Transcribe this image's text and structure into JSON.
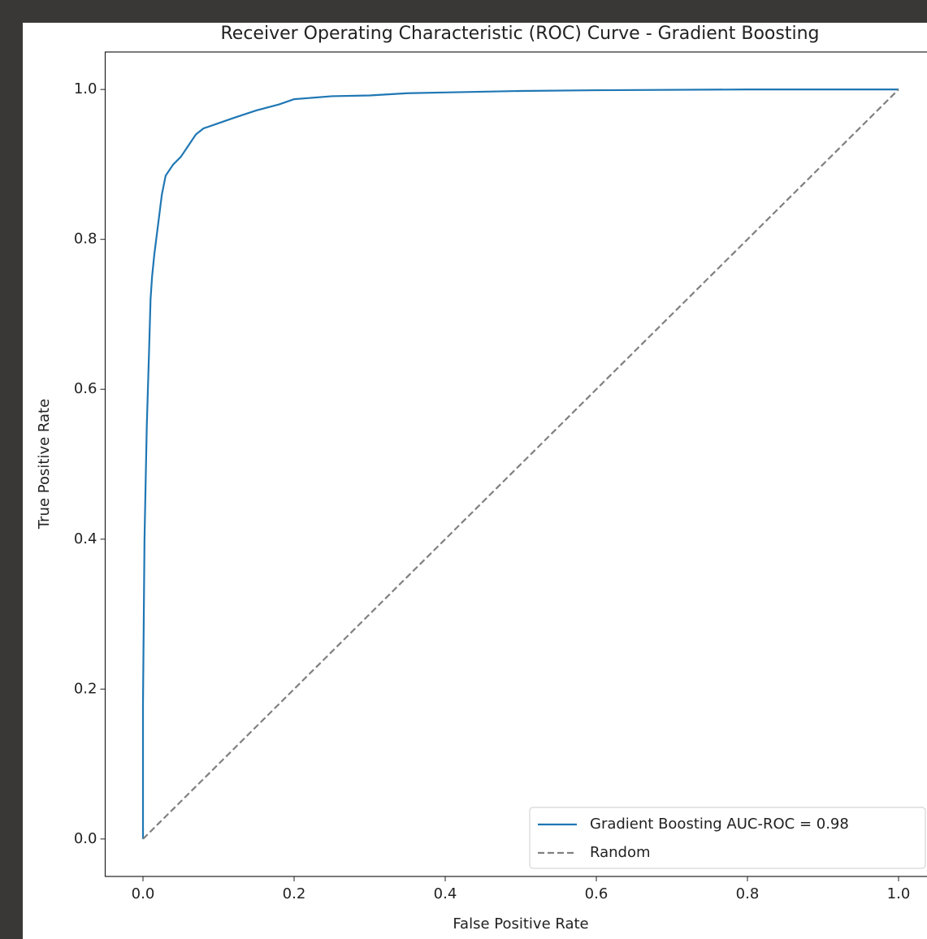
{
  "chart_data": {
    "type": "line",
    "title": "Receiver Operating Characteristic (ROC) Curve - Gradient Boosting",
    "xlabel": "False Positive Rate",
    "ylabel": "True Positive Rate",
    "xlim": [
      -0.05,
      1.05
    ],
    "ylim": [
      -0.05,
      1.05
    ],
    "xticks": [
      {
        "value": 0,
        "label": "0.0"
      },
      0.2,
      0.4,
      0.6,
      0.8,
      {
        "value": 1,
        "label": "1.0"
      }
    ],
    "yticks": [
      {
        "value": 0,
        "label": "0.0"
      },
      0.2,
      0.4,
      0.6,
      0.8,
      {
        "value": 1,
        "label": "1.0"
      }
    ],
    "legend": "lower right",
    "series": [
      {
        "name": "Gradient Boosting AUC-ROC = 0.98",
        "color": "#1f77b4",
        "style": "solid",
        "x": [
          0,
          0,
          0.002,
          0.003,
          0.005,
          0.008,
          0.01,
          0.012,
          0.015,
          0.02,
          0.025,
          0.03,
          0.04,
          0.05,
          0.06,
          0.07,
          0.08,
          0.1,
          0.12,
          0.15,
          0.18,
          0.2,
          0.25,
          0.3,
          0.35,
          0.4,
          0.5,
          0.6,
          0.8,
          1.0
        ],
        "values": [
          0,
          0.18,
          0.4,
          0.45,
          0.55,
          0.65,
          0.72,
          0.75,
          0.78,
          0.82,
          0.86,
          0.885,
          0.9,
          0.91,
          0.925,
          0.94,
          0.948,
          0.955,
          0.962,
          0.972,
          0.98,
          0.987,
          0.991,
          0.992,
          0.995,
          0.996,
          0.998,
          0.999,
          1.0,
          1.0
        ]
      },
      {
        "name": "Random",
        "color": "#808080",
        "style": "dashed",
        "x": [
          0,
          1
        ],
        "values": [
          0,
          1
        ]
      }
    ]
  }
}
